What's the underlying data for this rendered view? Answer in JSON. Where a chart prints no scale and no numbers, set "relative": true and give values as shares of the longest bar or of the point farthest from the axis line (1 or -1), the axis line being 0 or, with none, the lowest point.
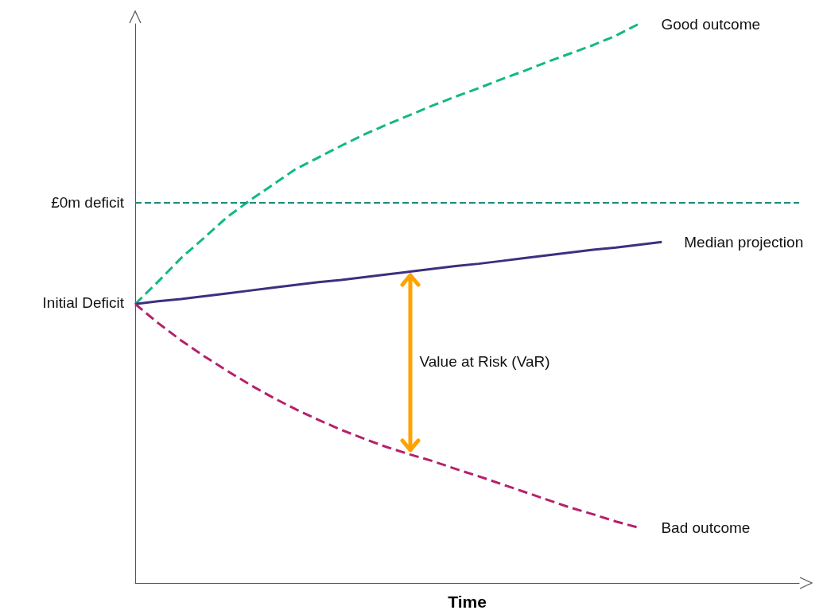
{
  "chart_data": {
    "type": "line",
    "relative": true,
    "xlabel": "Time",
    "legend": false,
    "grid": false,
    "marker": "none",
    "categories": [
      null,
      null,
      null,
      null,
      null,
      null,
      null,
      null,
      null,
      null,
      null,
      null,
      null,
      null,
      null,
      null,
      null,
      null,
      null,
      null,
      null,
      null,
      null,
      null,
      null,
      null,
      null,
      null,
      null,
      null
    ],
    "series": [
      {
        "name": "Good outcome",
        "color": "#12b886",
        "line_style": "dashed",
        "values": [
          0.499,
          0.539,
          0.581,
          0.617,
          0.654,
          0.684,
          0.712,
          0.74,
          0.761,
          0.782,
          0.802,
          0.82,
          0.837,
          0.854,
          0.87,
          0.885,
          0.901,
          0.916,
          0.932,
          0.947,
          0.962,
          0.979,
          1.0,
          null,
          null,
          null,
          null,
          null,
          null,
          null
        ]
      },
      {
        "name": "Median projection",
        "color": "#3d2f7f",
        "line_style": "solid",
        "values": [
          0.499,
          0.504,
          0.508,
          0.513,
          0.518,
          0.523,
          0.528,
          0.533,
          0.538,
          0.542,
          0.547,
          0.552,
          0.557,
          0.562,
          0.567,
          0.571,
          0.576,
          0.581,
          0.586,
          0.591,
          0.596,
          0.6,
          0.605,
          0.61,
          null,
          null,
          null,
          null,
          null,
          null
        ]
      },
      {
        "name": "Bad outcome",
        "color": "#b5216b",
        "line_style": "dashed",
        "values": [
          0.499,
          0.465,
          0.434,
          0.406,
          0.38,
          0.355,
          0.332,
          0.311,
          0.292,
          0.274,
          0.258,
          0.243,
          0.23,
          0.218,
          0.204,
          0.191,
          0.177,
          0.163,
          0.149,
          0.135,
          0.123,
          0.11,
          0.099,
          null,
          null,
          null,
          null,
          null,
          null,
          null
        ]
      }
    ],
    "ref_lines": [
      {
        "axis": "y",
        "value": 0.68,
        "label": "£0m deficit",
        "color": "#1a8a78",
        "line_style": "dashed"
      }
    ],
    "annotations": [
      "Initial Deficit",
      "Value at Risk (VaR)"
    ]
  }
}
